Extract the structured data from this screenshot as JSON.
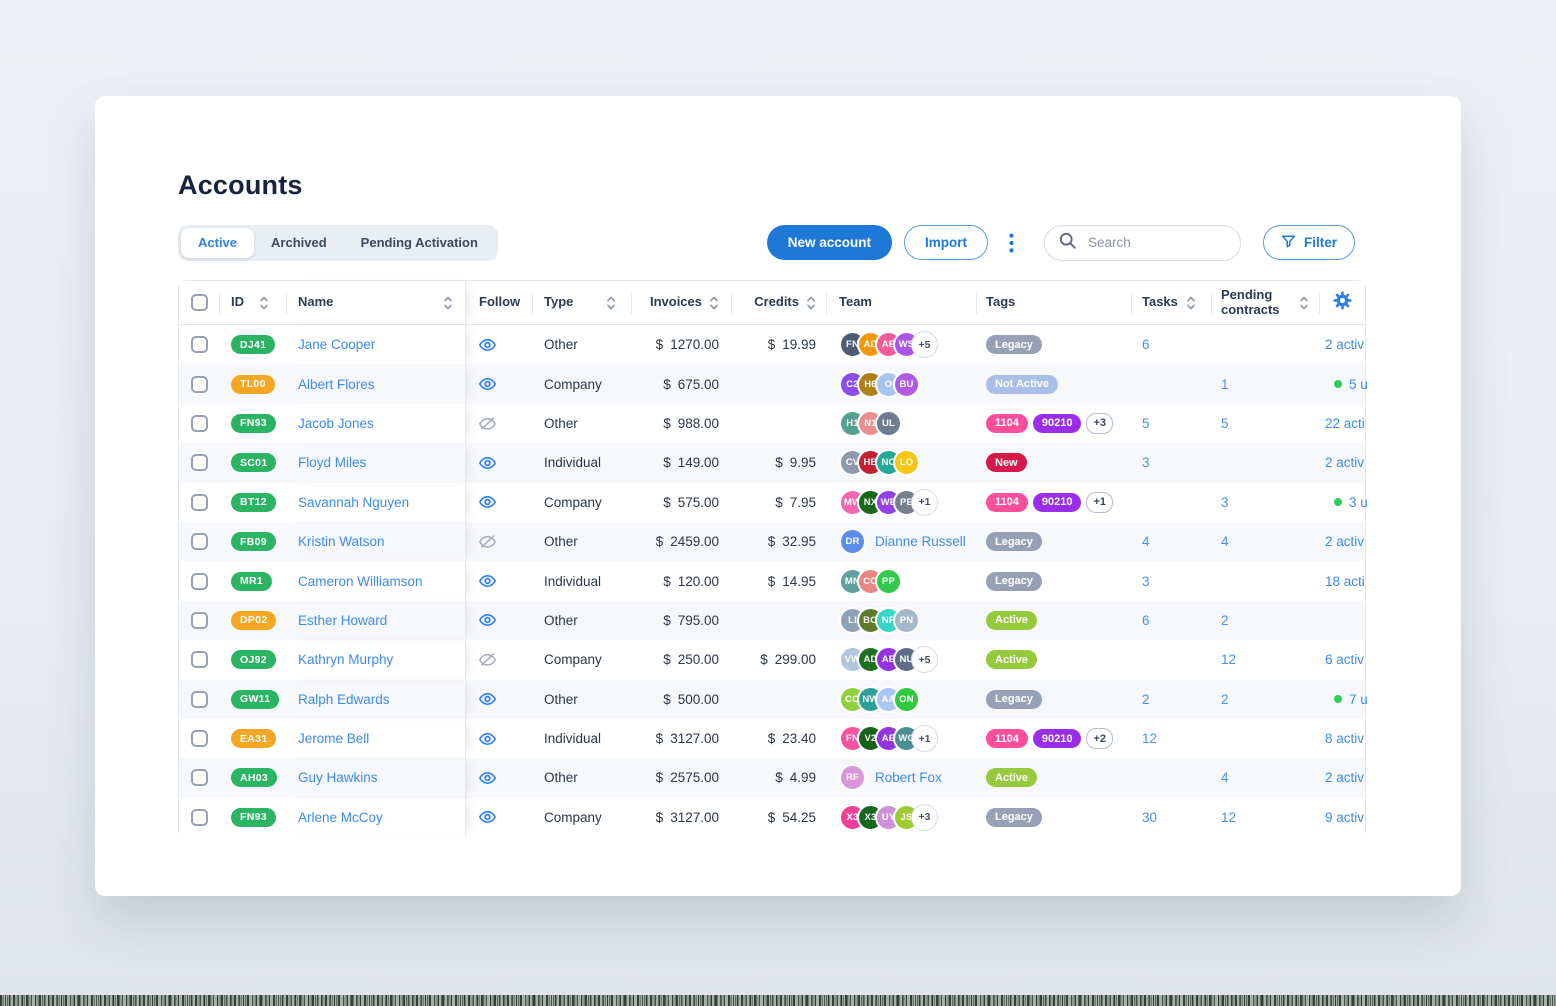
{
  "page": {
    "title": "Accounts"
  },
  "tabs": [
    {
      "label": "Active",
      "active": true
    },
    {
      "label": "Archived",
      "active": false
    },
    {
      "label": "Pending Activation",
      "active": false
    }
  ],
  "toolbar": {
    "new_account_label": "New account",
    "import_label": "Import",
    "more_icon": "kebab-menu-icon",
    "search_icon": "search-icon",
    "search_placeholder": "Search",
    "filter_label": "Filter",
    "filter_icon": "funnel-icon"
  },
  "colors": {
    "primary_blue": "#1d78d6",
    "link_blue": "#3d8bea",
    "count_blue": "#4a90e8",
    "badge_green": "#2ab463",
    "badge_orange": "#f5a623",
    "tag_legacy": "#97a1b5",
    "tag_not_active": "#a9bfe8",
    "tag_1104": "#fb4f9b",
    "tag_90210": "#9a2ee8",
    "tag_new": "#d6194b",
    "tag_active": "#97c93d",
    "online_dot_green": "#2ecc5b",
    "row_stripe": "#f7f8fb"
  },
  "table": {
    "columns": [
      {
        "key": "select",
        "type": "checkbox"
      },
      {
        "key": "id",
        "label": "ID",
        "sortable": true
      },
      {
        "key": "name",
        "label": "Name",
        "sortable": true
      },
      {
        "key": "follow",
        "label": "Follow",
        "sortable": false
      },
      {
        "key": "type",
        "label": "Type",
        "sortable": true
      },
      {
        "key": "invoices",
        "label": "Invoices",
        "sortable": true
      },
      {
        "key": "credits",
        "label": "Credits",
        "sortable": true
      },
      {
        "key": "team",
        "label": "Team",
        "sortable": false
      },
      {
        "key": "tags",
        "label": "Tags",
        "sortable": false
      },
      {
        "key": "tasks",
        "label": "Tasks",
        "sortable": true
      },
      {
        "key": "pending",
        "label": "Pending contracts",
        "sortable": true
      },
      {
        "key": "settings",
        "icon": "gear-icon"
      }
    ],
    "rows": [
      {
        "id": "DJ41",
        "id_color": "green",
        "name": "Jane Cooper",
        "follow": "on",
        "type": "Other",
        "invoices": "1270.00",
        "credits": "19.99",
        "team": {
          "avatars": [
            {
              "initials": "FN",
              "color": "#4d5b74"
            },
            {
              "initials": "AD",
              "color": "#f2980a"
            },
            {
              "initials": "AE",
              "color": "#f45c9c"
            },
            {
              "initials": "WS",
              "color": "#a855e8"
            }
          ],
          "more": "+5"
        },
        "tags": [
          {
            "label": "Legacy",
            "style": "legacy"
          }
        ],
        "tasks": "6",
        "pending": "",
        "activity": {
          "dot": false,
          "text": "2 activ"
        }
      },
      {
        "id": "TL00",
        "id_color": "orange",
        "name": "Albert Flores",
        "follow": "on",
        "type": "Company",
        "invoices": "675.00",
        "credits": "",
        "team": {
          "avatars": [
            {
              "initials": "C2",
              "color": "#8b4de8"
            },
            {
              "initials": "H6",
              "color": "#b08018"
            },
            {
              "initials": "O",
              "color": "#a8c4f0"
            },
            {
              "initials": "BU",
              "color": "#b05ce0"
            }
          ]
        },
        "tags": [
          {
            "label": "Not Active",
            "style": "notactive"
          }
        ],
        "tasks": "",
        "pending": "1",
        "activity": {
          "dot": true,
          "text": "5 u"
        }
      },
      {
        "id": "FN93",
        "id_color": "green",
        "name": "Jacob Jones",
        "follow": "off",
        "type": "Other",
        "invoices": "988.00",
        "credits": "",
        "team": {
          "avatars": [
            {
              "initials": "H1",
              "color": "#56a08e"
            },
            {
              "initials": "N1",
              "color": "#e88d90"
            },
            {
              "initials": "UL",
              "color": "#6e7d92"
            }
          ]
        },
        "tags": [
          {
            "label": "1104",
            "style": "pink"
          },
          {
            "label": "90210",
            "style": "purple"
          },
          {
            "label": "+3",
            "style": "plus"
          }
        ],
        "tasks": "5",
        "pending": "5",
        "activity": {
          "dot": false,
          "text": "22 acti"
        }
      },
      {
        "id": "SC01",
        "id_color": "green",
        "name": "Floyd Miles",
        "follow": "on",
        "type": "Individual",
        "invoices": "149.00",
        "credits": "9.95",
        "team": {
          "avatars": [
            {
              "initials": "CV",
              "color": "#8d99ad"
            },
            {
              "initials": "HB",
              "color": "#c42033"
            },
            {
              "initials": "NC",
              "color": "#27a795"
            },
            {
              "initials": "LO",
              "color": "#f3c712"
            }
          ]
        },
        "tags": [
          {
            "label": "New",
            "style": "new"
          }
        ],
        "tasks": "3",
        "pending": "",
        "activity": {
          "dot": false,
          "text": "2 activ"
        }
      },
      {
        "id": "BT12",
        "id_color": "green",
        "name": "Savannah Nguyen",
        "follow": "on",
        "type": "Company",
        "invoices": "575.00",
        "credits": "7.95",
        "team": {
          "avatars": [
            {
              "initials": "MW",
              "color": "#f268b0"
            },
            {
              "initials": "NX",
              "color": "#176817"
            },
            {
              "initials": "WE",
              "color": "#9340e8"
            },
            {
              "initials": "PE",
              "color": "#75808f"
            }
          ],
          "more": "+1"
        },
        "tags": [
          {
            "label": "1104",
            "style": "pink"
          },
          {
            "label": "90210",
            "style": "purple"
          },
          {
            "label": "+1",
            "style": "plus"
          }
        ],
        "tasks": "",
        "pending": "3",
        "activity": {
          "dot": true,
          "text": "3 u"
        }
      },
      {
        "id": "FB09",
        "id_color": "green",
        "name": "Kristin Watson",
        "follow": "off",
        "type": "Other",
        "invoices": "2459.00",
        "credits": "32.95",
        "team": {
          "avatars": [
            {
              "initials": "DR",
              "color": "#5a8cec"
            }
          ],
          "member_name": "Dianne Russell"
        },
        "tags": [
          {
            "label": "Legacy",
            "style": "legacy"
          }
        ],
        "tasks": "4",
        "pending": "4",
        "activity": {
          "dot": false,
          "text": "2 activ"
        }
      },
      {
        "id": "MR1",
        "id_color": "green",
        "name": "Cameron Williamson",
        "follow": "on",
        "type": "Individual",
        "invoices": "120.00",
        "credits": "14.95",
        "team": {
          "avatars": [
            {
              "initials": "MN",
              "color": "#62a0a0"
            },
            {
              "initials": "CO",
              "color": "#e88585"
            },
            {
              "initials": "PP",
              "color": "#35c84f"
            }
          ]
        },
        "tags": [
          {
            "label": "Legacy",
            "style": "legacy"
          }
        ],
        "tasks": "3",
        "pending": "",
        "activity": {
          "dot": false,
          "text": "18 acti"
        }
      },
      {
        "id": "DP02",
        "id_color": "orange",
        "name": "Esther Howard",
        "follow": "on",
        "type": "Other",
        "invoices": "795.00",
        "credits": "",
        "team": {
          "avatars": [
            {
              "initials": "LI",
              "color": "#8fa2b5"
            },
            {
              "initials": "BO",
              "color": "#5d7a28"
            },
            {
              "initials": "NP",
              "color": "#38d6c4"
            },
            {
              "initials": "PN",
              "color": "#a3b8c8"
            }
          ]
        },
        "tags": [
          {
            "label": "Active",
            "style": "active"
          }
        ],
        "tasks": "6",
        "pending": "2",
        "activity": {
          "dot": false,
          "text": ""
        }
      },
      {
        "id": "OJ92",
        "id_color": "green",
        "name": "Kathryn Murphy",
        "follow": "off",
        "type": "Company",
        "invoices": "250.00",
        "credits": "299.00",
        "team": {
          "avatars": [
            {
              "initials": "VW",
              "color": "#afc6da"
            },
            {
              "initials": "AD",
              "color": "#1d701d"
            },
            {
              "initials": "AE",
              "color": "#9633e0"
            },
            {
              "initials": "NU",
              "color": "#5f6e85"
            }
          ],
          "more": "+5"
        },
        "tags": [
          {
            "label": "Active",
            "style": "active"
          }
        ],
        "tasks": "",
        "pending": "12",
        "activity": {
          "dot": false,
          "text": "6 activ"
        }
      },
      {
        "id": "GW11",
        "id_color": "green",
        "name": "Ralph Edwards",
        "follow": "on",
        "type": "Other",
        "invoices": "500.00",
        "credits": "",
        "team": {
          "avatars": [
            {
              "initials": "CO",
              "color": "#8ed03e"
            },
            {
              "initials": "NW",
              "color": "#2aa096"
            },
            {
              "initials": "AA",
              "color": "#aac6f2"
            },
            {
              "initials": "ON",
              "color": "#2ec93e"
            }
          ]
        },
        "tags": [
          {
            "label": "Legacy",
            "style": "legacy"
          }
        ],
        "tasks": "2",
        "pending": "2",
        "activity": {
          "dot": true,
          "text": "7 u"
        }
      },
      {
        "id": "EA31",
        "id_color": "orange",
        "name": "Jerome Bell",
        "follow": "on",
        "type": "Individual",
        "invoices": "3127.00",
        "credits": "23.40",
        "team": {
          "avatars": [
            {
              "initials": "FN",
              "color": "#f7529e"
            },
            {
              "initials": "V2",
              "color": "#186018"
            },
            {
              "initials": "AE",
              "color": "#9633e0"
            },
            {
              "initials": "WC",
              "color": "#4c8f93"
            }
          ],
          "more": "+1"
        },
        "tags": [
          {
            "label": "1104",
            "style": "pink"
          },
          {
            "label": "90210",
            "style": "purple"
          },
          {
            "label": "+2",
            "style": "plus"
          }
        ],
        "tasks": "12",
        "pending": "",
        "activity": {
          "dot": false,
          "text": "8 activ"
        }
      },
      {
        "id": "AH03",
        "id_color": "green",
        "name": "Guy Hawkins",
        "follow": "on",
        "type": "Other",
        "invoices": "2575.00",
        "credits": "4.99",
        "team": {
          "avatars": [
            {
              "initials": "RF",
              "color": "#db97db"
            }
          ],
          "member_name": "Robert Fox"
        },
        "tags": [
          {
            "label": "Active",
            "style": "active"
          }
        ],
        "tasks": "",
        "pending": "4",
        "activity": {
          "dot": false,
          "text": "2 activ"
        }
      },
      {
        "id": "FN93",
        "id_color": "green",
        "name": "Arlene McCoy",
        "follow": "on",
        "type": "Company",
        "invoices": "3127.00",
        "credits": "54.25",
        "team": {
          "avatars": [
            {
              "initials": "X3",
              "color": "#ee4097"
            },
            {
              "initials": "X3",
              "color": "#14691c"
            },
            {
              "initials": "UY",
              "color": "#cf90d8"
            },
            {
              "initials": "JS",
              "color": "#9ccc33"
            }
          ],
          "more": "+3"
        },
        "tags": [
          {
            "label": "Legacy",
            "style": "legacy"
          }
        ],
        "tasks": "30",
        "pending": "12",
        "activity": {
          "dot": false,
          "text": "9 activ"
        }
      }
    ],
    "currency_symbol": "$"
  }
}
